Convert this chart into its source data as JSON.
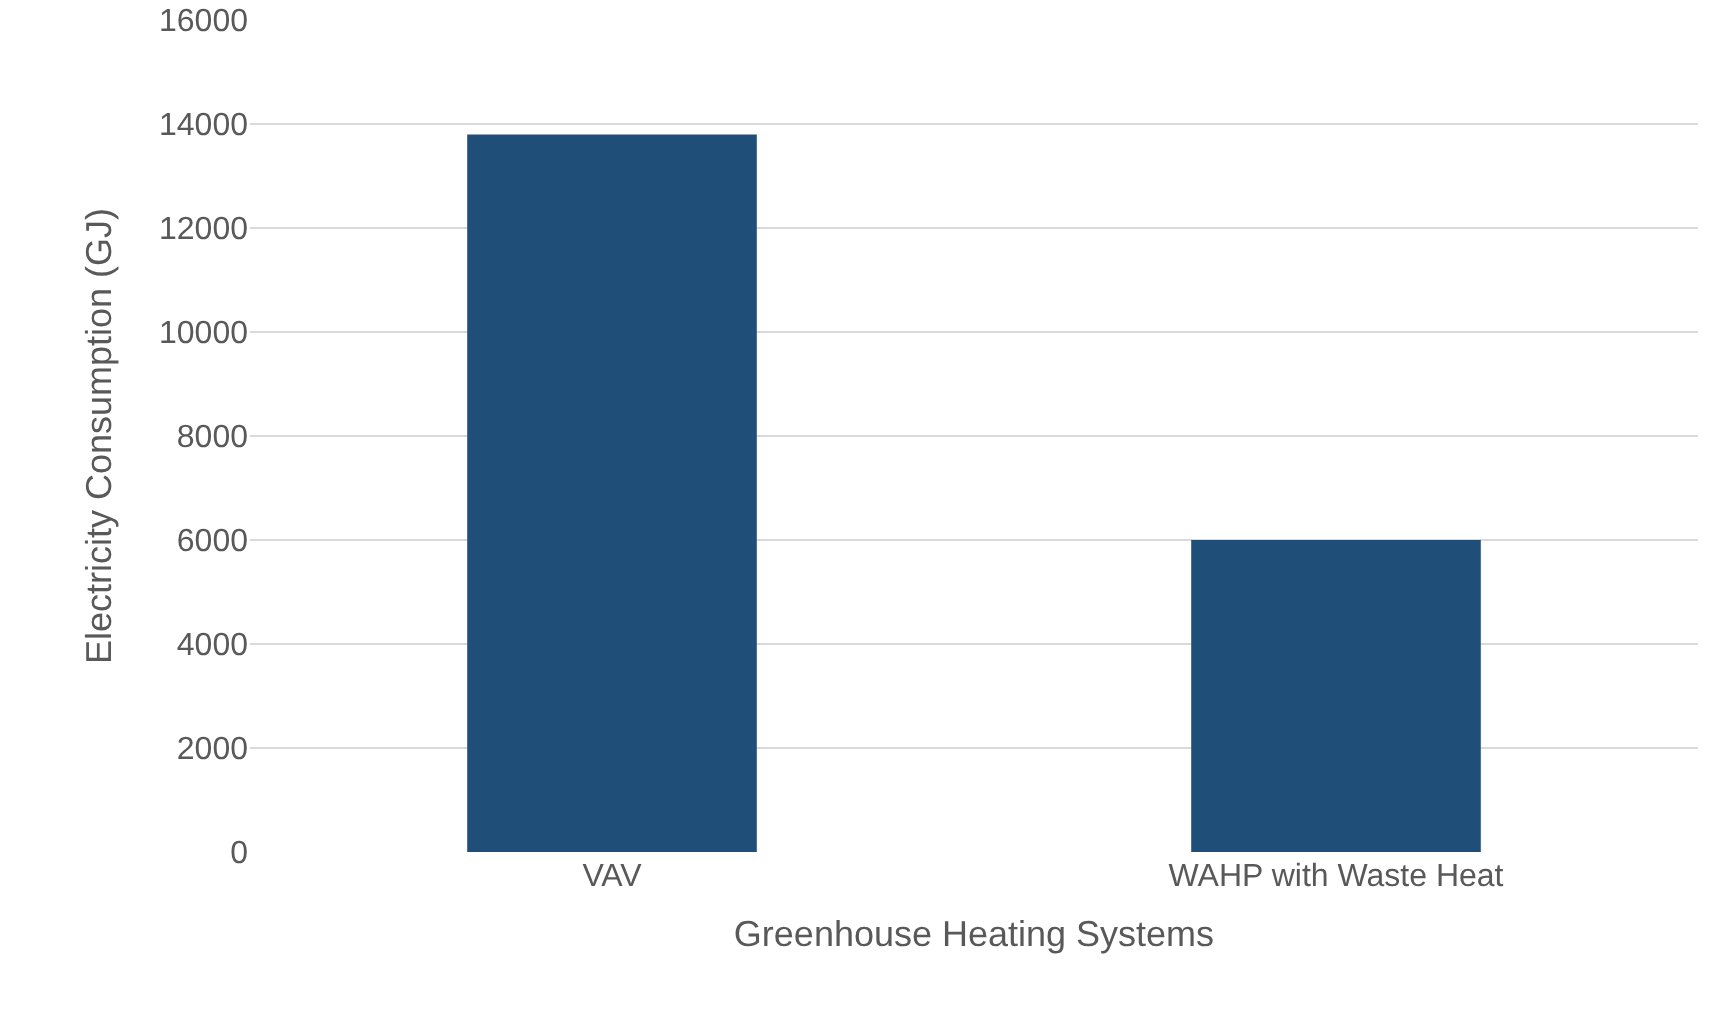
{
  "chart_data": {
    "type": "bar",
    "xlabel": "Greenhouse Heating Systems",
    "ylabel": "Electricity Consumption (GJ)",
    "categories": [
      "VAV",
      "WAHP with Waste Heat"
    ],
    "values": [
      13800,
      6000
    ],
    "color": "#1f4e79",
    "ylim": [
      0,
      16000
    ],
    "yticks": [
      0,
      2000,
      4000,
      6000,
      8000,
      10000,
      12000,
      14000,
      16000
    ],
    "grid": "y"
  }
}
